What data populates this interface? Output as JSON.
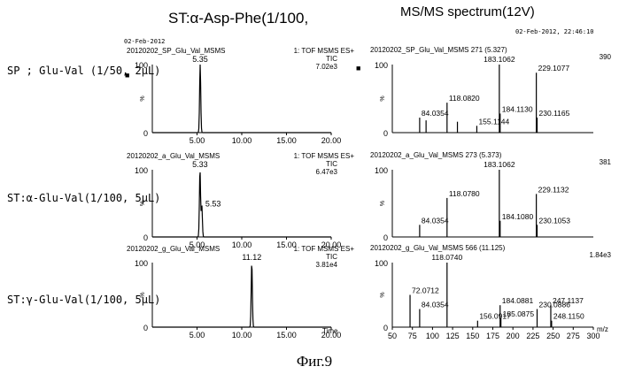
{
  "header": {
    "left_title": "ST:α-Asp-Phe(1/100,",
    "right_title": "MS/MS spectrum(12V)",
    "date_left": "02-Feb-2012",
    "date_right": "02-Feb-2012,  22:46:10"
  },
  "row_labels": [
    "SP ; Glu-Val (1/50, 2μL)",
    "ST:α-Glu-Val(1/100, 5μL)",
    "ST:γ-Glu-Val(1/100, 5μL)"
  ],
  "marker": "■",
  "caption": "Фиг.9",
  "chart_data": [
    {
      "type": "line",
      "panel": "chromatogram-1",
      "file": "20120202_SP_Glu_Val_MSMS",
      "method": "1: TOF MSMS ES+",
      "mode": "TIC",
      "intensity": "7.02e3",
      "xlim": [
        0,
        20
      ],
      "ylim": [
        0,
        100
      ],
      "xticks": [
        5.0,
        10.0,
        15.0,
        20.0
      ],
      "yticks": [
        0,
        100
      ],
      "xlabel": "",
      "peaks": [
        {
          "x": 5.35,
          "height": 100,
          "label": "5.35"
        }
      ]
    },
    {
      "type": "line",
      "panel": "chromatogram-2",
      "file": "20120202_a_Glu_Val_MSMS",
      "method": "1: TOF MSMS ES+",
      "mode": "TIC",
      "intensity": "6.47e3",
      "xlim": [
        0,
        20
      ],
      "ylim": [
        0,
        100
      ],
      "xticks": [
        5.0,
        10.0,
        15.0,
        20.0
      ],
      "yticks": [
        0,
        100
      ],
      "xlabel": "",
      "peaks": [
        {
          "x": 5.33,
          "height": 100,
          "label": "5.33"
        },
        {
          "x": 5.53,
          "height": 48,
          "label": "5.53"
        }
      ]
    },
    {
      "type": "line",
      "panel": "chromatogram-3",
      "file": "20120202_g_Glu_Val_MSMS",
      "method": "1: TOF MSMS ES+",
      "mode": "TIC",
      "intensity": "3.81e4",
      "xlim": [
        0,
        20
      ],
      "ylim": [
        0,
        100
      ],
      "xticks": [
        5.0,
        10.0,
        15.0,
        20.0
      ],
      "yticks": [
        0,
        100
      ],
      "xlabel": "Time",
      "peaks": [
        {
          "x": 11.12,
          "height": 100,
          "label": "11.12"
        }
      ]
    },
    {
      "type": "bar",
      "panel": "spectrum-1",
      "file": "20120202_SP_Glu_Val_MSMS 271 (5.327)",
      "intensity": "390",
      "xlim": [
        50,
        300
      ],
      "ylim": [
        0,
        100
      ],
      "xticks": [],
      "yticks": [
        0,
        100
      ],
      "xlabel": "",
      "sticks": [
        {
          "x": 84.0354,
          "y": 22,
          "label": "84.0354"
        },
        {
          "x": 92,
          "y": 18,
          "label": ""
        },
        {
          "x": 118.082,
          "y": 44,
          "label": "118.0820"
        },
        {
          "x": 131,
          "y": 16,
          "label": ""
        },
        {
          "x": 155.1144,
          "y": 10,
          "label": "155.1144"
        },
        {
          "x": 183.1062,
          "y": 100,
          "label": "183.1062"
        },
        {
          "x": 184.113,
          "y": 28,
          "label": "184.1130"
        },
        {
          "x": 229.1077,
          "y": 88,
          "label": "229.1077"
        },
        {
          "x": 230.1165,
          "y": 22,
          "label": "230.1165"
        }
      ]
    },
    {
      "type": "bar",
      "panel": "spectrum-2",
      "file": "20120202_a_Glu_Val_MSMS 273 (5.373)",
      "intensity": "381",
      "xlim": [
        50,
        300
      ],
      "ylim": [
        0,
        100
      ],
      "xticks": [],
      "yticks": [
        0,
        100
      ],
      "xlabel": "",
      "sticks": [
        {
          "x": 84.0354,
          "y": 18,
          "label": "84.0354"
        },
        {
          "x": 118.078,
          "y": 58,
          "label": "118.0780"
        },
        {
          "x": 183.1062,
          "y": 100,
          "label": "183.1062"
        },
        {
          "x": 184.108,
          "y": 24,
          "label": "184.1080"
        },
        {
          "x": 229.1132,
          "y": 64,
          "label": "229.1132"
        },
        {
          "x": 230.1053,
          "y": 18,
          "label": "230.1053"
        }
      ]
    },
    {
      "type": "bar",
      "panel": "spectrum-3",
      "file": "20120202_g_Glu_Val_MSMS 566 (11.125)",
      "intensity": "1.84e3",
      "xlim": [
        50,
        300
      ],
      "ylim": [
        0,
        100
      ],
      "xticks": [
        50,
        75,
        100,
        125,
        150,
        175,
        200,
        225,
        250,
        275,
        300
      ],
      "yticks": [
        0,
        100
      ],
      "xlabel": "m/z",
      "sticks": [
        {
          "x": 72.0712,
          "y": 50,
          "label": "72.0712"
        },
        {
          "x": 84.0354,
          "y": 28,
          "label": "84.0354"
        },
        {
          "x": 118.074,
          "y": 100,
          "label": "118.0740"
        },
        {
          "x": 156.0917,
          "y": 10,
          "label": "156.0917"
        },
        {
          "x": 184.0881,
          "y": 34,
          "label": "184.0881"
        },
        {
          "x": 185.0875,
          "y": 14,
          "label": "185.0875"
        },
        {
          "x": 230.0886,
          "y": 28,
          "label": "230.0886"
        },
        {
          "x": 247.1137,
          "y": 34,
          "label": "247.1137"
        },
        {
          "x": 248.115,
          "y": 10,
          "label": "248.1150"
        }
      ]
    }
  ]
}
